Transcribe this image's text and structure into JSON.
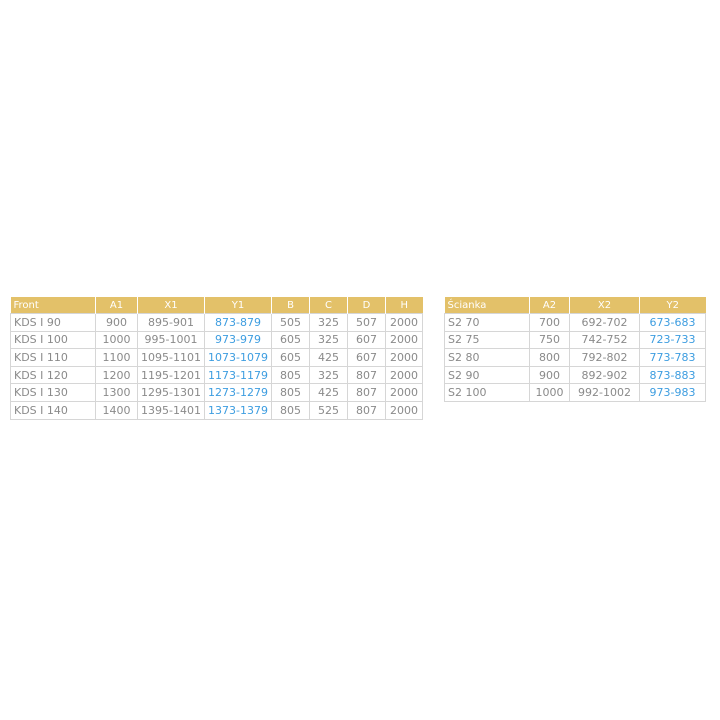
{
  "front_table": {
    "headers": [
      "Front",
      "A1",
      "X1",
      "Y1",
      "B",
      "C",
      "D",
      "H"
    ],
    "highlight_column": 3,
    "rows": [
      [
        "KDS I 90",
        "900",
        "895-901",
        "873-879",
        "505",
        "325",
        "507",
        "2000"
      ],
      [
        "KDS I 100",
        "1000",
        "995-1001",
        "973-979",
        "605",
        "325",
        "607",
        "2000"
      ],
      [
        "KDS I 110",
        "1100",
        "1095-1101",
        "1073-1079",
        "605",
        "425",
        "607",
        "2000"
      ],
      [
        "KDS I 120",
        "1200",
        "1195-1201",
        "1173-1179",
        "805",
        "325",
        "807",
        "2000"
      ],
      [
        "KDS I 130",
        "1300",
        "1295-1301",
        "1273-1279",
        "805",
        "425",
        "807",
        "2000"
      ],
      [
        "KDS I 140",
        "1400",
        "1395-1401",
        "1373-1379",
        "805",
        "525",
        "807",
        "2000"
      ]
    ]
  },
  "wall_table": {
    "headers": [
      "Ścianka",
      "A2",
      "X2",
      "Y2"
    ],
    "highlight_column": 3,
    "rows": [
      [
        "S2 70",
        "700",
        "692-702",
        "673-683"
      ],
      [
        "S2 75",
        "750",
        "742-752",
        "723-733"
      ],
      [
        "S2 80",
        "800",
        "792-802",
        "773-783"
      ],
      [
        "S2 90",
        "900",
        "892-902",
        "873-883"
      ],
      [
        "S2 100",
        "1000",
        "992-1002",
        "973-983"
      ]
    ]
  },
  "colors": {
    "header_bg": "#e3c169",
    "text": "#8a8a8a",
    "highlight": "#3d9de0"
  }
}
